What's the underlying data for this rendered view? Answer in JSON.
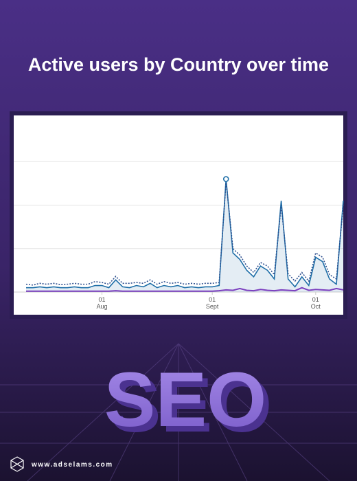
{
  "chart_data": {
    "type": "line",
    "title": "Active users by Country over time",
    "categories": [
      null,
      null,
      null,
      null,
      null,
      null,
      null,
      null,
      null,
      null,
      null,
      "01 Aug",
      null,
      null,
      null,
      null,
      null,
      null,
      null,
      null,
      null,
      null,
      null,
      null,
      null,
      null,
      null,
      "01 Sept",
      null,
      null,
      null,
      null,
      null,
      null,
      null,
      null,
      null,
      null,
      null,
      null,
      null,
      null,
      "01 Oct",
      null,
      null,
      null,
      null
    ],
    "ylim": [
      0,
      4
    ],
    "grid": true,
    "area": true,
    "series": [
      {
        "color": "#1f6fa8",
        "style": "solid",
        "values": [
          0.1,
          0.1,
          0.12,
          0.1,
          0.12,
          0.1,
          0.1,
          0.12,
          0.1,
          0.1,
          0.15,
          0.15,
          0.1,
          0.28,
          0.12,
          0.1,
          0.15,
          0.12,
          0.2,
          0.1,
          0.15,
          0.12,
          0.15,
          0.1,
          0.12,
          0.1,
          0.12,
          0.12,
          0.15,
          2.6,
          0.9,
          0.75,
          0.5,
          0.35,
          0.6,
          0.5,
          0.3,
          2.1,
          0.3,
          0.12,
          0.35,
          0.15,
          0.8,
          0.7,
          0.3,
          0.18,
          2.1
        ]
      },
      {
        "color": "#2d4f8f",
        "style": "dotted",
        "values": [
          0.18,
          0.16,
          0.2,
          0.18,
          0.2,
          0.17,
          0.18,
          0.2,
          0.18,
          0.18,
          0.24,
          0.22,
          0.18,
          0.36,
          0.2,
          0.2,
          0.22,
          0.2,
          0.28,
          0.18,
          0.24,
          0.2,
          0.22,
          0.18,
          0.2,
          0.18,
          0.2,
          0.2,
          0.22,
          2.55,
          1.0,
          0.85,
          0.6,
          0.45,
          0.68,
          0.6,
          0.4,
          2.0,
          0.42,
          0.25,
          0.45,
          0.25,
          0.9,
          0.8,
          0.4,
          0.3,
          2.0
        ]
      },
      {
        "color": "#7b3fbf",
        "style": "solid",
        "values": [
          0.02,
          0.02,
          0.02,
          0.02,
          0.02,
          0.02,
          0.02,
          0.02,
          0.02,
          0.02,
          0.02,
          0.02,
          0.02,
          0.03,
          0.02,
          0.02,
          0.02,
          0.02,
          0.02,
          0.02,
          0.02,
          0.02,
          0.02,
          0.02,
          0.02,
          0.02,
          0.02,
          0.02,
          0.03,
          0.05,
          0.04,
          0.08,
          0.04,
          0.03,
          0.06,
          0.04,
          0.03,
          0.05,
          0.04,
          0.03,
          0.1,
          0.04,
          0.06,
          0.05,
          0.04,
          0.08,
          0.05
        ]
      }
    ]
  },
  "hero_text": "SEO",
  "website": "www.adselams.com"
}
